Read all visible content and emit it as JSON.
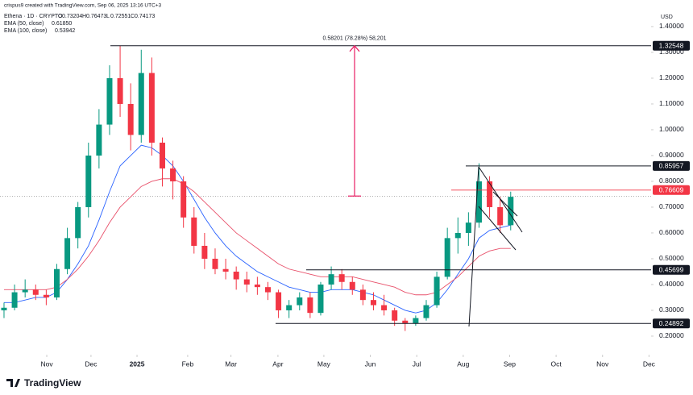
{
  "chart_data": {
    "type": "candlestick",
    "credit": "crispus9 created with TradingView.com, Sep 06, 2025 13:16 UTC+3",
    "title": "Ethena · 1D · CRYPTO",
    "ohlc_legend": [
      {
        "label": "O",
        "value": 0.73204
      },
      {
        "label": "H",
        "value": 0.76473
      },
      {
        "label": "L",
        "value": 0.72551
      },
      {
        "label": "C",
        "value": 0.74173
      }
    ],
    "currency": "USD",
    "brand": "TradingView",
    "up_color": "#089981",
    "down_color": "#f23645",
    "open": [
      0.3,
      0.31,
      0.37,
      0.38,
      0.36,
      0.35,
      0.46,
      0.58,
      0.7,
      0.9,
      1.02,
      1.2,
      1.1,
      0.98,
      1.22,
      0.95,
      0.85,
      0.8,
      0.66,
      0.55,
      0.5,
      0.46,
      0.45,
      0.42,
      0.4,
      0.39,
      0.37,
      0.3,
      0.32,
      0.35,
      0.29,
      0.4,
      0.44,
      0.41,
      0.38,
      0.34,
      0.32,
      0.3,
      0.26,
      0.25,
      0.27,
      0.32,
      0.43,
      0.58,
      0.6,
      0.64,
      0.8,
      0.7,
      0.63
    ],
    "high": [
      0.33,
      0.4,
      0.42,
      0.4,
      0.38,
      0.48,
      0.62,
      0.72,
      0.95,
      1.08,
      1.25,
      1.325,
      1.18,
      1.31,
      1.28,
      0.97,
      0.88,
      0.82,
      0.7,
      0.6,
      0.54,
      0.5,
      0.47,
      0.45,
      0.43,
      0.41,
      0.38,
      0.34,
      0.37,
      0.37,
      0.41,
      0.47,
      0.46,
      0.43,
      0.4,
      0.37,
      0.36,
      0.31,
      0.27,
      0.28,
      0.34,
      0.45,
      0.62,
      0.66,
      0.68,
      0.87,
      0.82,
      0.74,
      0.76
    ],
    "low": [
      0.27,
      0.3,
      0.35,
      0.34,
      0.32,
      0.34,
      0.44,
      0.54,
      0.66,
      0.85,
      0.98,
      1.05,
      0.92,
      0.95,
      0.9,
      0.78,
      0.73,
      0.62,
      0.52,
      0.46,
      0.44,
      0.42,
      0.38,
      0.37,
      0.36,
      0.34,
      0.27,
      0.27,
      0.3,
      0.27,
      0.28,
      0.38,
      0.38,
      0.36,
      0.32,
      0.3,
      0.28,
      0.24,
      0.22,
      0.24,
      0.26,
      0.31,
      0.42,
      0.52,
      0.55,
      0.62,
      0.66,
      0.6,
      0.61
    ],
    "close": [
      0.31,
      0.37,
      0.38,
      0.36,
      0.35,
      0.46,
      0.58,
      0.7,
      0.9,
      1.02,
      1.2,
      1.1,
      0.98,
      1.22,
      0.95,
      0.85,
      0.8,
      0.66,
      0.55,
      0.5,
      0.46,
      0.45,
      0.42,
      0.4,
      0.39,
      0.37,
      0.3,
      0.32,
      0.35,
      0.29,
      0.4,
      0.44,
      0.41,
      0.38,
      0.34,
      0.32,
      0.3,
      0.26,
      0.25,
      0.27,
      0.32,
      0.43,
      0.58,
      0.6,
      0.64,
      0.8,
      0.7,
      0.63,
      0.74
    ],
    "series": [
      {
        "name": "EMA (50, close)",
        "color": "#2962ff",
        "last": 0.6185,
        "last_label": "0.61850",
        "values": [
          0.33,
          0.33,
          0.34,
          0.35,
          0.35,
          0.37,
          0.42,
          0.48,
          0.55,
          0.65,
          0.76,
          0.86,
          0.9,
          0.94,
          0.93,
          0.9,
          0.86,
          0.8,
          0.73,
          0.66,
          0.6,
          0.55,
          0.51,
          0.48,
          0.45,
          0.43,
          0.41,
          0.39,
          0.38,
          0.37,
          0.37,
          0.38,
          0.38,
          0.38,
          0.37,
          0.36,
          0.34,
          0.32,
          0.3,
          0.29,
          0.3,
          0.33,
          0.38,
          0.44,
          0.5,
          0.58,
          0.61,
          0.62,
          0.63
        ]
      },
      {
        "name": "EMA (100, close)",
        "color": "#e8506a",
        "last": 0.53942,
        "values": [
          0.38,
          0.38,
          0.38,
          0.38,
          0.38,
          0.39,
          0.42,
          0.46,
          0.51,
          0.57,
          0.64,
          0.7,
          0.74,
          0.78,
          0.8,
          0.81,
          0.81,
          0.79,
          0.76,
          0.72,
          0.68,
          0.64,
          0.6,
          0.57,
          0.54,
          0.51,
          0.48,
          0.46,
          0.45,
          0.44,
          0.43,
          0.43,
          0.43,
          0.43,
          0.42,
          0.41,
          0.4,
          0.39,
          0.37,
          0.36,
          0.36,
          0.37,
          0.4,
          0.43,
          0.47,
          0.51,
          0.53,
          0.54,
          0.54
        ]
      }
    ],
    "levels": [
      1.32548,
      0.85957,
      0.45699,
      0.24892
    ],
    "marked_price": 0.76609,
    "measure": {
      "text": "0.58201 (78.28%) 58,201",
      "from": 0.743,
      "to": 1.32548
    },
    "xlim": [
      -0.38,
      61.3
    ],
    "xticks": [
      {
        "value": 4.05,
        "label": "Nov"
      },
      {
        "value": 8.24,
        "label": "Dec"
      },
      {
        "value": 12.6,
        "label": "2025"
      },
      {
        "value": 17.4,
        "label": "Feb"
      },
      {
        "value": 21.5,
        "label": "Mar"
      },
      {
        "value": 25.95,
        "label": "Apr"
      },
      {
        "value": 30.3,
        "label": "May"
      },
      {
        "value": 34.7,
        "label": "Jun"
      },
      {
        "value": 39.1,
        "label": "Jul"
      },
      {
        "value": 43.5,
        "label": "Aug"
      },
      {
        "value": 47.9,
        "label": "Sep"
      },
      {
        "value": 52.3,
        "label": "Oct"
      },
      {
        "value": 56.7,
        "label": "Nov"
      },
      {
        "value": 61.1,
        "label": "Dec"
      }
    ],
    "ylim": [
      0.128,
      1.503
    ],
    "yticks": [
      {
        "value": 0.2,
        "label": "0.20000"
      },
      {
        "value": 0.3,
        "label": "0.30000"
      },
      {
        "value": 0.4,
        "label": "0.40000"
      },
      {
        "value": 0.5,
        "label": "0.50000"
      },
      {
        "value": 0.6,
        "label": "0.60000"
      },
      {
        "value": 0.7,
        "label": "0.70000"
      },
      {
        "value": 0.8,
        "label": "0.80000"
      },
      {
        "value": 0.9,
        "label": "0.90000"
      },
      {
        "value": 1.0,
        "label": "1.00000"
      },
      {
        "value": 1.1,
        "label": "1.10000"
      },
      {
        "value": 1.2,
        "label": "1.20000"
      },
      {
        "value": 1.3,
        "label": "1.30000"
      },
      {
        "value": 1.4,
        "label": "1.40000"
      }
    ]
  }
}
